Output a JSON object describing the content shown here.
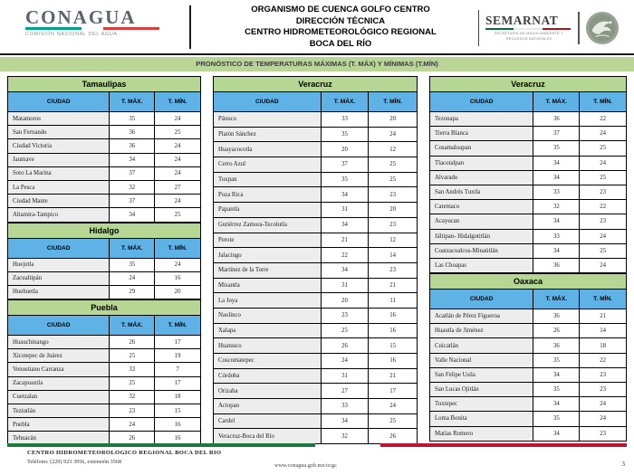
{
  "header": {
    "conagua": {
      "logo_text": "CONAGUA",
      "tagline": "COMISIÓN NACIONAL DEL AGUA"
    },
    "title_lines": [
      "ORGANISMO DE CUENCA GOLFO CENTRO",
      "DIRECCIÓN TÉCNICA",
      "CENTRO HIDROMETEOROLÓGICO REGIONAL",
      "BOCA DEL RÍO"
    ],
    "semarnat": {
      "logo_text": "SEMARNAT",
      "tagline": "SECRETARÍA DE MEDIO AMBIENTE Y RECURSOS NATURALES"
    }
  },
  "banner": {
    "text": "PRONÓSTICO DE TEMPERATURAS MÁXIMAS (T. MÁX) Y MÍNIMAS (T.MÍN)"
  },
  "column_headers": [
    "CIUDAD",
    "T. MÁX.",
    "T. MÍN."
  ],
  "table_columns": [
    {
      "tables": [
        {
          "state": "Tamaulipas",
          "rows": [
            [
              "Matamoros",
              "35",
              "24"
            ],
            [
              "San Fernando",
              "36",
              "25"
            ],
            [
              "Ciudad Victoria",
              "36",
              "24"
            ],
            [
              "Jaumave",
              "34",
              "24"
            ],
            [
              "Soto La Marina",
              "37",
              "24"
            ],
            [
              "La Pesca",
              "32",
              "27"
            ],
            [
              "Ciudad Mante",
              "37",
              "24"
            ],
            [
              "Altamira-Tampico",
              "34",
              "25"
            ]
          ]
        },
        {
          "state": "Hidalgo",
          "rows": [
            [
              "Huejutla",
              "35",
              "24"
            ],
            [
              "Zacualtipán",
              "24",
              "16"
            ],
            [
              "Huehuetla",
              "29",
              "20"
            ]
          ]
        },
        {
          "state": "Puebla",
          "rows": [
            [
              "Huauchinango",
              "26",
              "17"
            ],
            [
              "Xicotepec de Juárez",
              "25",
              "19"
            ],
            [
              "Venustiano Carranza",
              "33",
              "7"
            ],
            [
              "Zacapoaxtla",
              "25",
              "17"
            ],
            [
              "Cuetzalan",
              "32",
              "18"
            ],
            [
              "Teziutlán",
              "23",
              "15"
            ],
            [
              "Puebla",
              "24",
              "16"
            ],
            [
              "Tehuacán",
              "26",
              "16"
            ]
          ]
        }
      ]
    },
    {
      "tables": [
        {
          "state": "Veracruz",
          "rows": [
            [
              "Pánuco",
              "33",
              "20"
            ],
            [
              "Platón Sánchez",
              "35",
              "24"
            ],
            [
              "Huayacocotla",
              "20",
              "12"
            ],
            [
              "Cerro Azul",
              "37",
              "25"
            ],
            [
              "Tuxpan",
              "35",
              "25"
            ],
            [
              "Poza Rica",
              "34",
              "23"
            ],
            [
              "Papantla",
              "31",
              "20"
            ],
            [
              "Gutiérrez Zamora-Tecolutla",
              "34",
              "23"
            ],
            [
              "Perote",
              "21",
              "12"
            ],
            [
              "Jalacingo",
              "22",
              "14"
            ],
            [
              "Martínez de la Torre",
              "34",
              "23"
            ],
            [
              "Misantla",
              "31",
              "21"
            ],
            [
              "La Joya",
              "20",
              "11"
            ],
            [
              "Naolinco",
              "23",
              "16"
            ],
            [
              "Xalapa",
              "25",
              "16"
            ],
            [
              "Huatusco",
              "26",
              "15"
            ],
            [
              "Coscomatepec",
              "24",
              "16"
            ],
            [
              "Córdoba",
              "31",
              "21"
            ],
            [
              "Orizaba",
              "27",
              "17"
            ],
            [
              "Actopan",
              "33",
              "24"
            ],
            [
              "Cardel",
              "34",
              "25"
            ],
            [
              "Veracruz-Boca del Río",
              "32",
              "26"
            ]
          ]
        }
      ]
    },
    {
      "tables": [
        {
          "state": "Veracruz",
          "rows": [
            [
              "Tezonapa",
              "36",
              "22"
            ],
            [
              "Tierra Blanca",
              "37",
              "24"
            ],
            [
              "Cosamaloapan",
              "35",
              "25"
            ],
            [
              "Tlacotalpan",
              "34",
              "24"
            ],
            [
              "Alvarado",
              "34",
              "25"
            ],
            [
              "San Andrés Tuxtla",
              "33",
              "23"
            ],
            [
              "Catemaco",
              "32",
              "22"
            ],
            [
              "Acayucan",
              "34",
              "23"
            ],
            [
              "Jáltipan- Hidalgotitlán",
              "33",
              "24"
            ],
            [
              "Coatzacoalcos-Minatitlán",
              "34",
              "25"
            ],
            [
              "Las Choapas",
              "36",
              "24"
            ]
          ]
        },
        {
          "state": "Oaxaca",
          "rows": [
            [
              "Acatlán de Pérez Figueroa",
              "36",
              "21"
            ],
            [
              "Huautla de Jiménez",
              "26",
              "14"
            ],
            [
              "Cuicatlán",
              "36",
              "18"
            ],
            [
              "Valle Nacional",
              "35",
              "22"
            ],
            [
              "San Felipe Usila",
              "34",
              "23"
            ],
            [
              "San Lucas Ojitlán",
              "35",
              "23"
            ],
            [
              "Tuxtepec",
              "34",
              "24"
            ],
            [
              "Loma Bonita",
              "35",
              "24"
            ],
            [
              "Matías Romero",
              "34",
              "23"
            ]
          ]
        }
      ]
    }
  ],
  "footer": {
    "org": "CENTRO HIDROMETEOROLOGICO REGIONAL BOCA DEL RIO",
    "phone": "Teléfono: (229) 923 3956, extensión 3568",
    "url": "www.conagua.gob.mx/ocgc",
    "page": "3"
  },
  "colors": {
    "state_band_green": "#b6d793",
    "column_band_blue": "#5fb2e6",
    "banner_green": "#b9d697",
    "footer_bar_green": "#19793f",
    "footer_bar_red": "#c2122d",
    "conagua_teal": "#00a18f",
    "conagua_red": "#d84040"
  }
}
